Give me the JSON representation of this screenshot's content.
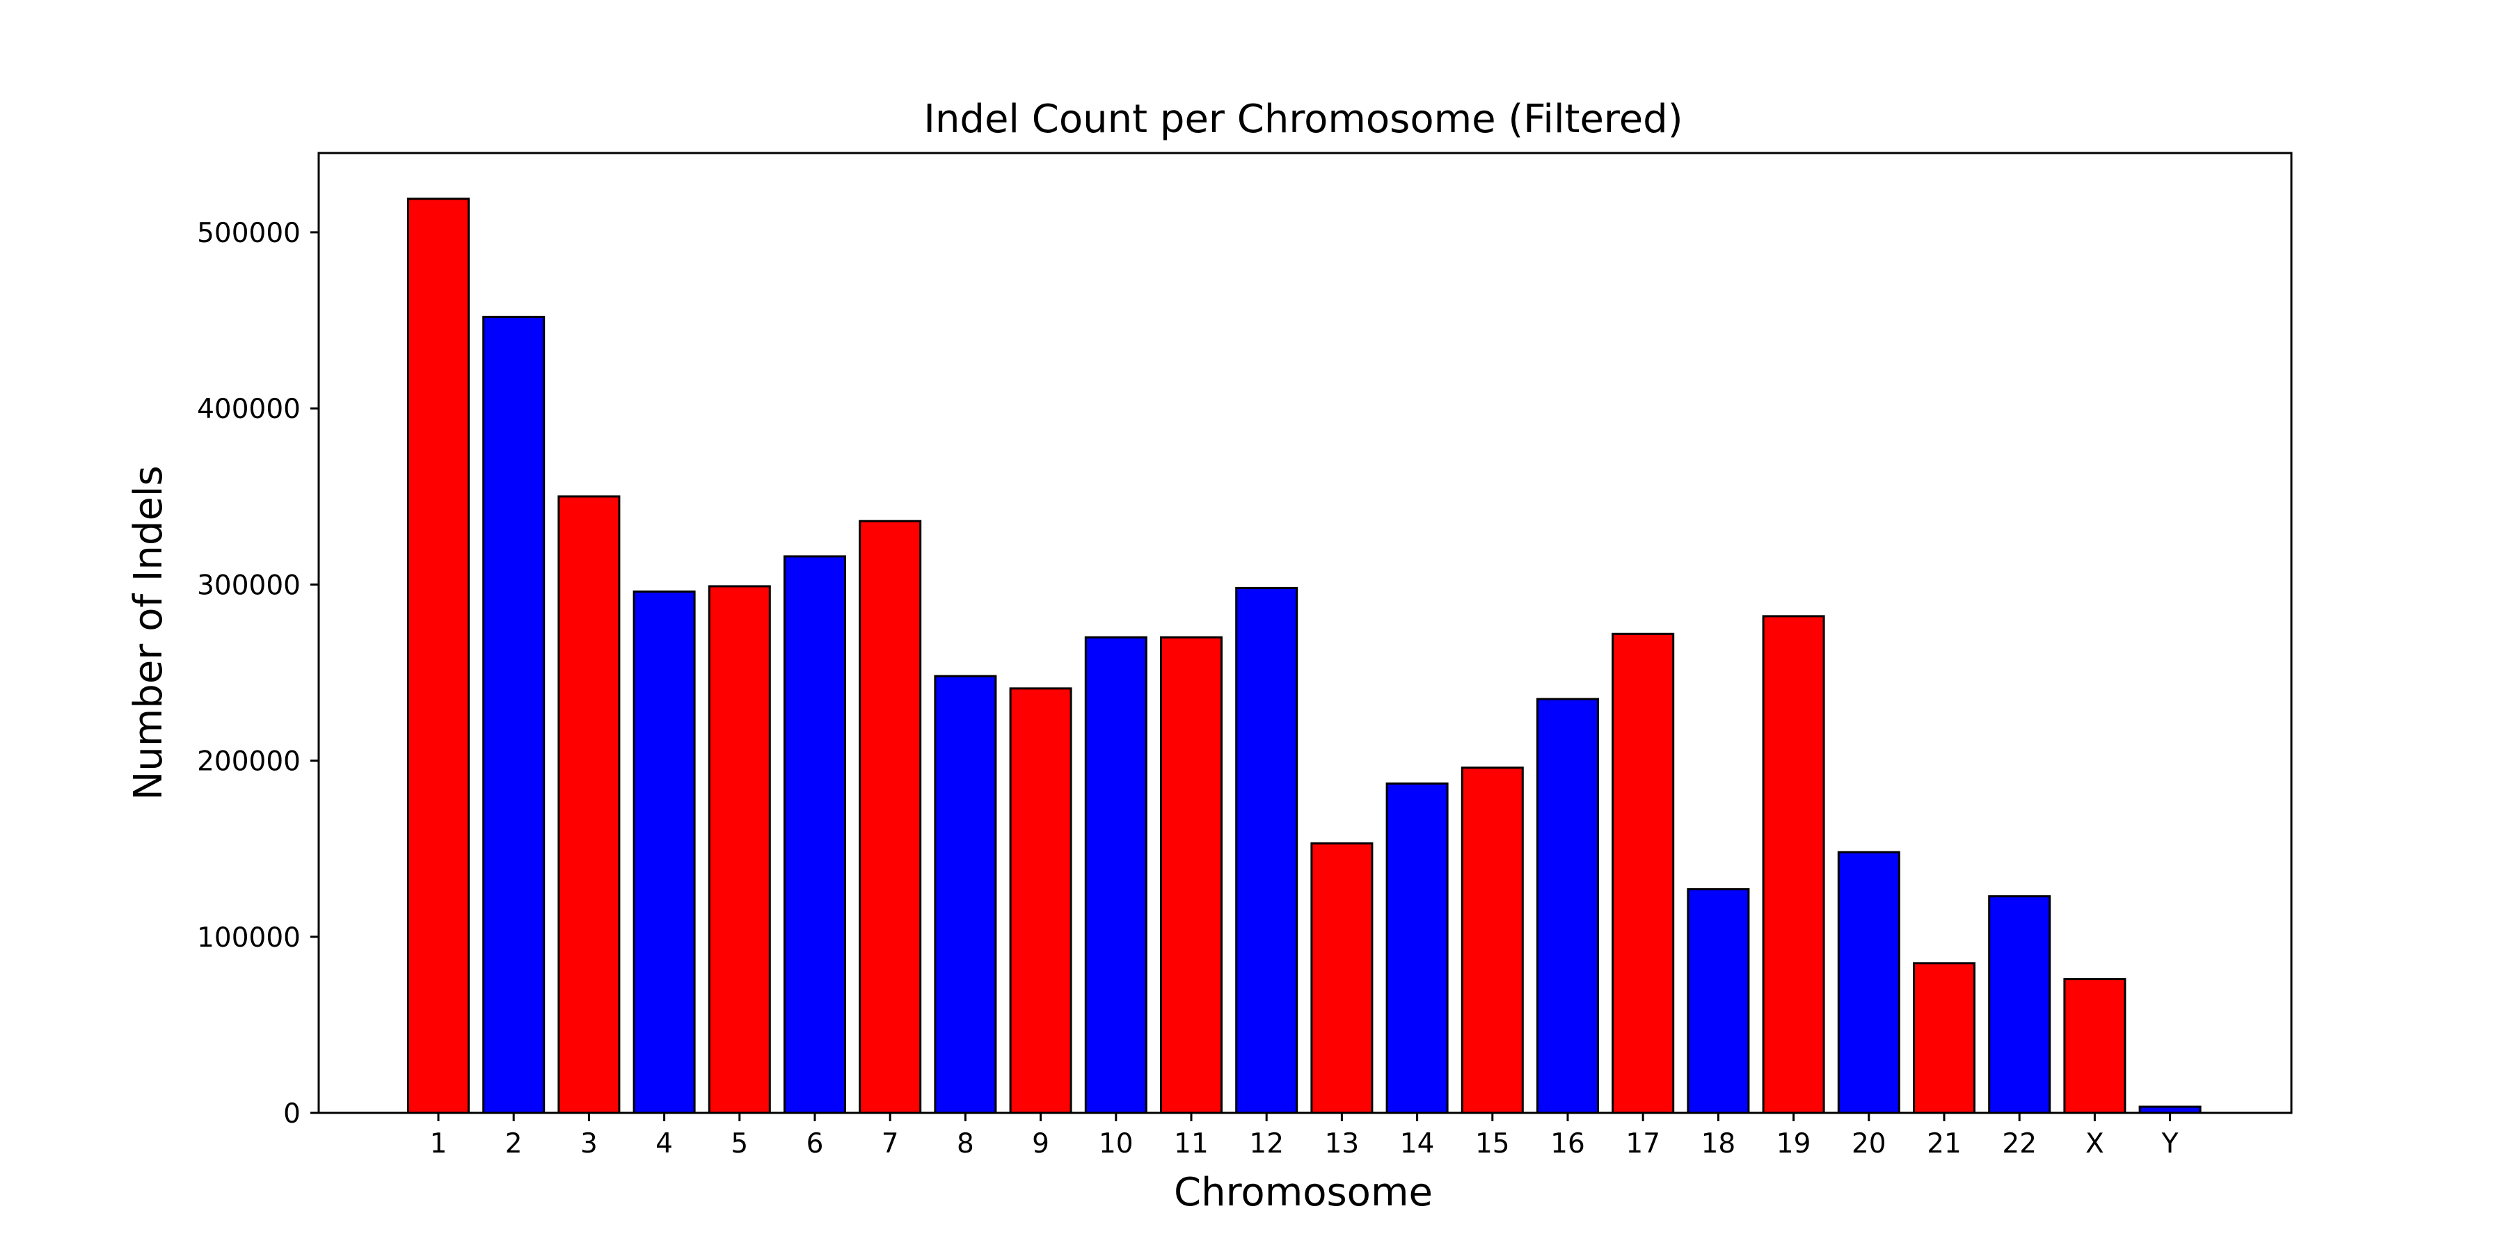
{
  "chart_data": {
    "type": "bar",
    "title": "Indel Count per Chromosome (Filtered)",
    "xlabel": "Chromosome",
    "ylabel": "Number of Indels",
    "categories": [
      "1",
      "2",
      "3",
      "4",
      "5",
      "6",
      "7",
      "8",
      "9",
      "10",
      "11",
      "12",
      "13",
      "14",
      "15",
      "16",
      "17",
      "18",
      "19",
      "20",
      "21",
      "22",
      "X",
      "Y"
    ],
    "values": [
      519000,
      452000,
      350000,
      296000,
      299000,
      316000,
      336000,
      248000,
      241000,
      270000,
      270000,
      298000,
      153000,
      187000,
      196000,
      235000,
      272000,
      127000,
      282000,
      148000,
      85000,
      123000,
      76000,
      3500
    ],
    "bar_colors": [
      "#ff0000",
      "#0000ff",
      "#ff0000",
      "#0000ff",
      "#ff0000",
      "#0000ff",
      "#ff0000",
      "#0000ff",
      "#ff0000",
      "#0000ff",
      "#ff0000",
      "#0000ff",
      "#ff0000",
      "#0000ff",
      "#ff0000",
      "#0000ff",
      "#ff0000",
      "#0000ff",
      "#ff0000",
      "#0000ff",
      "#ff0000",
      "#0000ff",
      "#ff0000",
      "#0000ff"
    ],
    "edge_color": "#000000",
    "ylim": [
      0,
      545000
    ],
    "yticks": [
      0,
      100000,
      200000,
      300000,
      400000,
      500000
    ],
    "ytick_labels": [
      "0",
      "100000",
      "200000",
      "300000",
      "400000",
      "500000"
    ],
    "grid": false,
    "legend": null
  }
}
